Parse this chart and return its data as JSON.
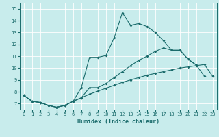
{
  "xlabel": "Humidex (Indice chaleur)",
  "bg_color": "#c8ecec",
  "grid_color": "#ffffff",
  "line_color": "#1a6b6b",
  "xlim": [
    -0.5,
    23.5
  ],
  "ylim": [
    6.5,
    15.5
  ],
  "xticks": [
    0,
    1,
    2,
    3,
    4,
    5,
    6,
    7,
    8,
    9,
    10,
    11,
    12,
    13,
    14,
    15,
    16,
    17,
    18,
    19,
    20,
    21,
    22,
    23
  ],
  "yticks": [
    7,
    8,
    9,
    10,
    11,
    12,
    13,
    14,
    15
  ],
  "line_smooth": {
    "x": [
      0,
      1,
      2,
      3,
      4,
      5,
      6,
      7,
      8,
      9,
      10,
      11,
      12,
      13,
      14,
      15,
      16,
      17,
      18,
      19,
      20,
      21,
      22,
      23
    ],
    "y": [
      7.7,
      7.2,
      7.1,
      6.85,
      6.7,
      6.85,
      7.2,
      7.5,
      7.8,
      8.05,
      8.3,
      8.55,
      8.8,
      9.0,
      9.2,
      9.4,
      9.55,
      9.7,
      9.85,
      10.0,
      10.1,
      10.2,
      10.3,
      9.3
    ]
  },
  "line_mid": {
    "x": [
      0,
      1,
      2,
      3,
      4,
      5,
      6,
      7,
      8,
      9,
      10,
      11,
      12,
      13,
      14,
      15,
      16,
      17,
      18,
      19,
      20,
      21,
      22
    ],
    "y": [
      7.7,
      7.2,
      7.1,
      6.85,
      6.7,
      6.85,
      7.2,
      7.5,
      8.35,
      8.35,
      8.7,
      9.2,
      9.7,
      10.2,
      10.65,
      11.0,
      11.4,
      11.7,
      11.5,
      11.5,
      10.75,
      10.25,
      9.3
    ]
  },
  "line_peak": {
    "x": [
      0,
      1,
      2,
      3,
      4,
      5,
      6,
      7,
      8,
      9,
      10,
      11,
      12,
      13,
      14,
      15,
      16,
      17,
      18,
      19,
      20,
      21
    ],
    "y": [
      7.7,
      7.2,
      7.1,
      6.85,
      6.7,
      6.85,
      7.2,
      8.35,
      10.9,
      10.9,
      11.05,
      12.55,
      14.65,
      13.6,
      13.75,
      13.5,
      13.0,
      12.3,
      11.5,
      11.5,
      10.75,
      10.25
    ]
  }
}
